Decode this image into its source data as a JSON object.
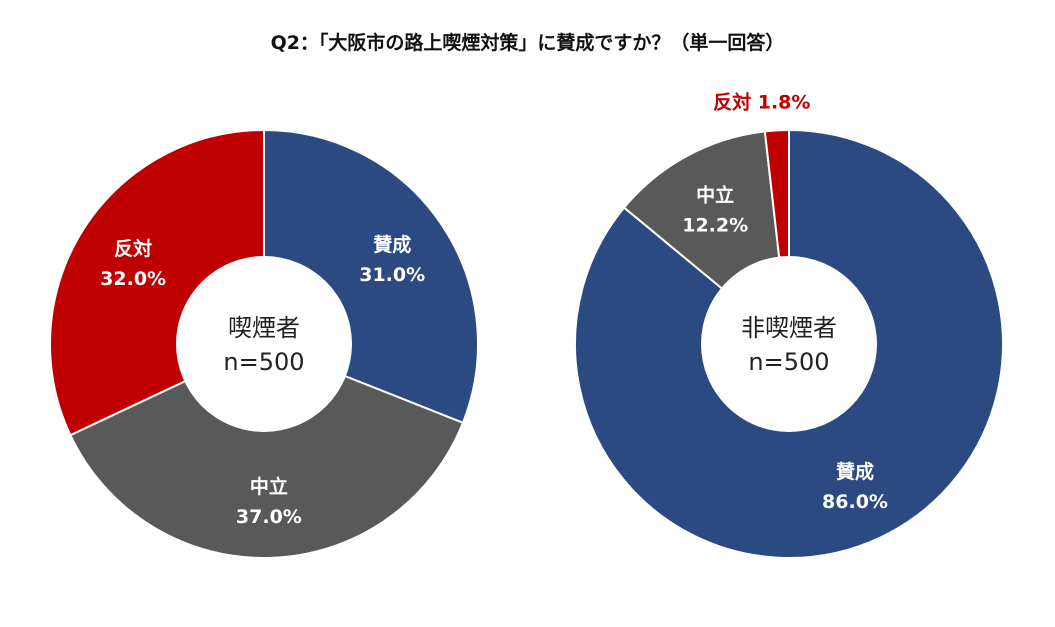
{
  "title": "Q2：「大阪市の路上喫煙対策」に賛成ですか？（単一回答）",
  "colors": {
    "approve": "#2c4a82",
    "neutral": "#595959",
    "oppose": "#c00000",
    "outside_label": "#c00000"
  },
  "chart_data": [
    {
      "type": "pie",
      "title": "喫煙者",
      "sample": "n=500",
      "categories": [
        "賛成",
        "中立",
        "反対"
      ],
      "values": [
        31.0,
        37.0,
        32.0
      ],
      "value_labels": [
        "31.0%",
        "37.0%",
        "32.0%"
      ],
      "donut": true
    },
    {
      "type": "pie",
      "title": "非喫煙者",
      "sample": "n=500",
      "categories": [
        "賛成",
        "中立",
        "反対"
      ],
      "values": [
        86.0,
        12.2,
        1.8
      ],
      "value_labels": [
        "86.0%",
        "12.2%",
        "1.8%"
      ],
      "donut": true
    }
  ]
}
